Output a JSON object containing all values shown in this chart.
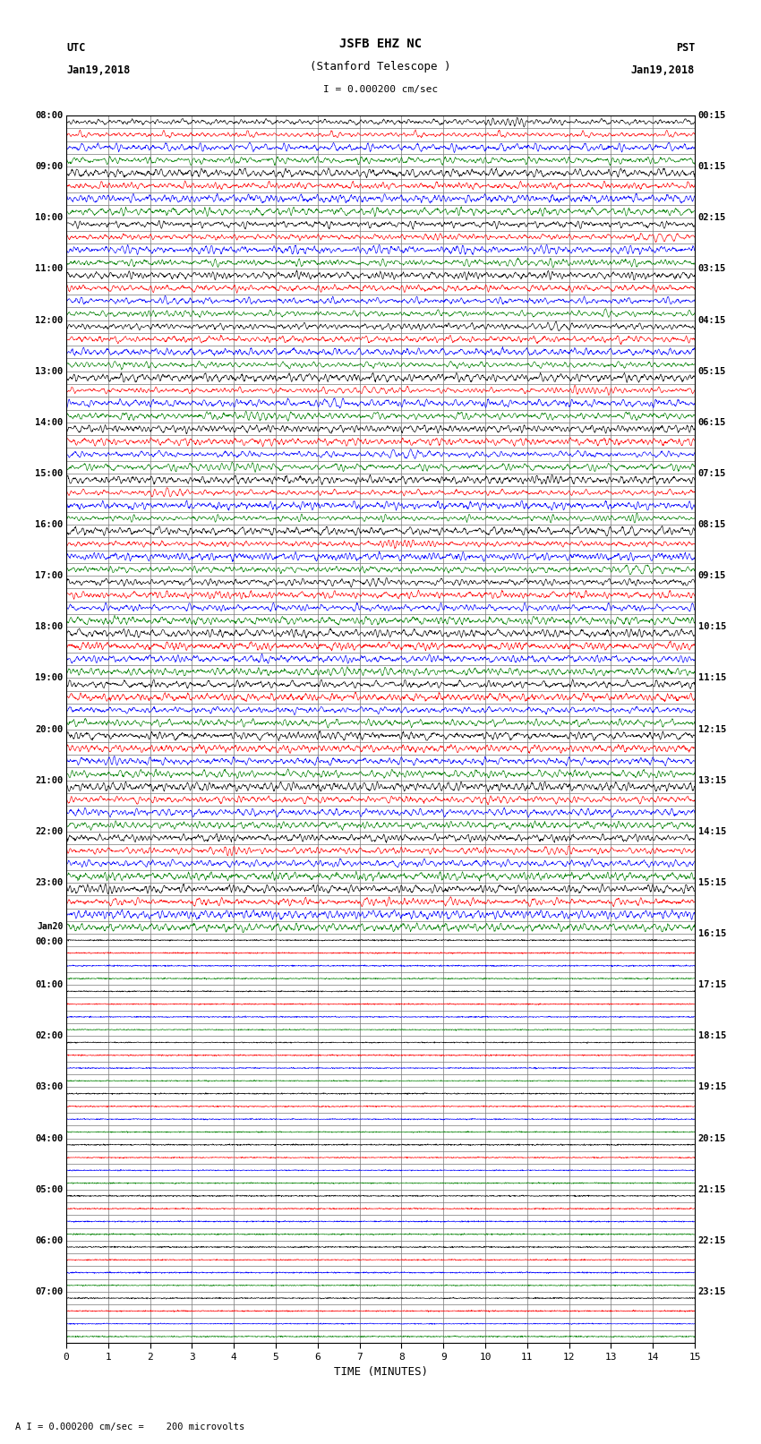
{
  "title_line1": "JSFB EHZ NC",
  "title_line2": "(Stanford Telescope )",
  "scale_label": "I = 0.000200 cm/sec",
  "bottom_label": "A I = 0.000200 cm/sec =    200 microvolts",
  "xlabel": "TIME (MINUTES)",
  "utc_header": "UTC",
  "utc_date": "Jan19,2018",
  "pst_header": "PST",
  "pst_date": "Jan19,2018",
  "utc_times": [
    "08:00",
    "09:00",
    "10:00",
    "11:00",
    "12:00",
    "13:00",
    "14:00",
    "15:00",
    "16:00",
    "17:00",
    "18:00",
    "19:00",
    "20:00",
    "21:00",
    "22:00",
    "23:00",
    "Jan20\n00:00",
    "01:00",
    "02:00",
    "03:00",
    "04:00",
    "05:00",
    "06:00",
    "07:00"
  ],
  "pst_times": [
    "00:15",
    "01:15",
    "02:15",
    "03:15",
    "04:15",
    "05:15",
    "06:15",
    "07:15",
    "08:15",
    "09:15",
    "10:15",
    "11:15",
    "12:15",
    "13:15",
    "14:15",
    "15:15",
    "16:15",
    "17:15",
    "18:15",
    "19:15",
    "20:15",
    "21:15",
    "22:15",
    "23:15"
  ],
  "colors": [
    "black",
    "red",
    "blue",
    "green"
  ],
  "bg_color": "white",
  "grid_color": "#777777",
  "num_rows": 24,
  "traces_per_row": 4,
  "active_rows": 16,
  "noise_seed": 42
}
